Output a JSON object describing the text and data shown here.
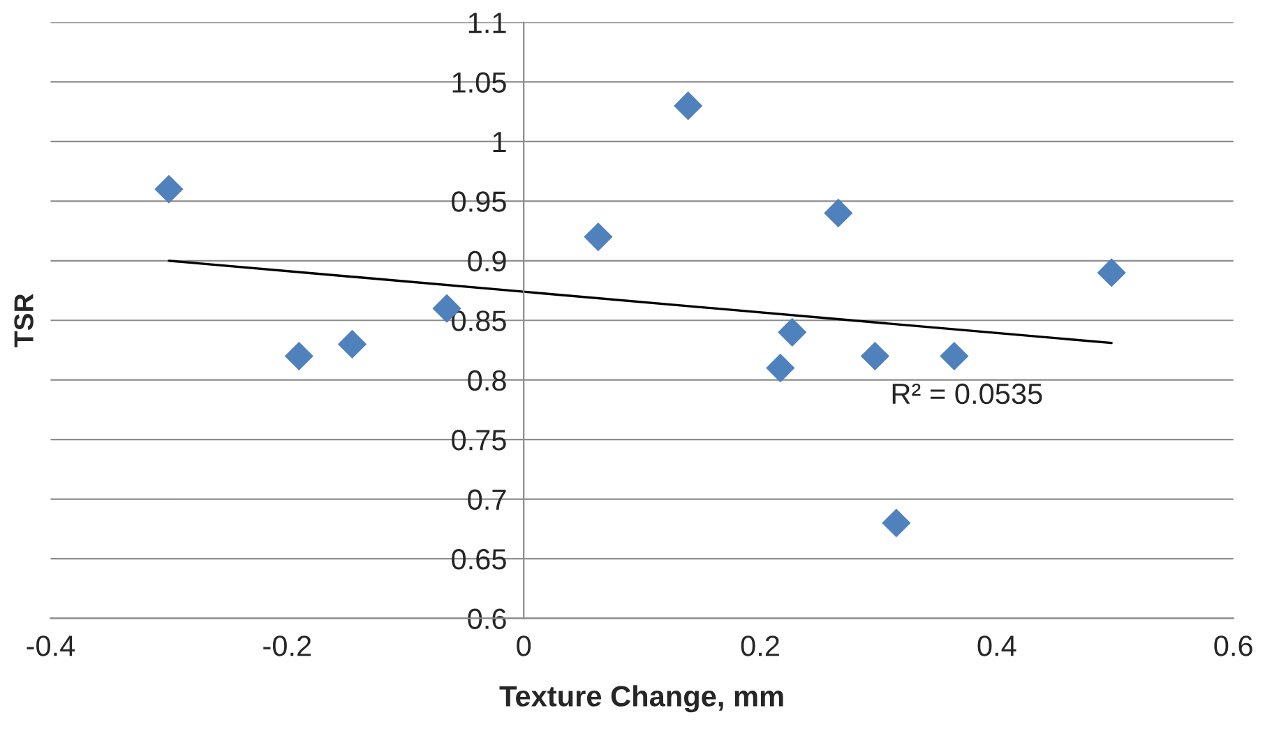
{
  "chart_data": {
    "type": "scatter",
    "xlabel": "Texture Change, mm",
    "ylabel": "TSR",
    "xlim": [
      -0.4,
      0.6
    ],
    "xticks": [
      -0.4,
      -0.2,
      0,
      0.2,
      0.4,
      0.6
    ],
    "ylim": [
      0.6,
      1.1
    ],
    "yticks": [
      0.6,
      0.65,
      0.7,
      0.75,
      0.8,
      0.85,
      0.9,
      0.95,
      1,
      1.05,
      1.1
    ],
    "grid": "y",
    "series": [
      {
        "marker": "diamond",
        "color": "#4f81bd",
        "x": [
          -0.3,
          -0.19,
          -0.145,
          -0.065,
          0.063,
          0.139,
          0.217,
          0.227,
          0.266,
          0.297,
          0.315,
          0.364,
          0.497
        ],
        "values": [
          0.96,
          0.82,
          0.83,
          0.86,
          0.92,
          1.03,
          0.81,
          0.84,
          0.94,
          0.82,
          0.68,
          0.82,
          0.89
        ]
      },
      {
        "type": "line",
        "color": "#000000",
        "x": [
          -0.3,
          0.497
        ],
        "values": [
          0.9,
          0.831
        ]
      }
    ],
    "annotations": [
      "R² = 0.0535"
    ]
  }
}
